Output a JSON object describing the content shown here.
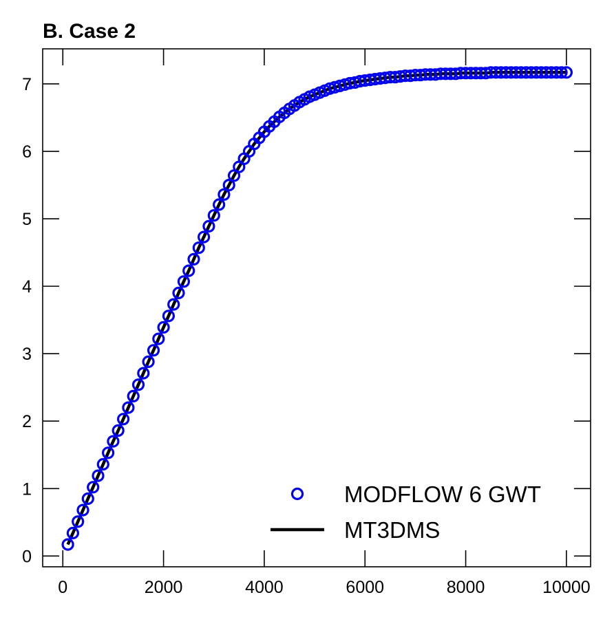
{
  "chart_data": {
    "type": "scatter",
    "title": "B. Case 2",
    "xlabel": "",
    "ylabel": "",
    "xlim": [
      -400,
      10480
    ],
    "ylim": [
      -0.16,
      7.52
    ],
    "xticks": [
      0,
      2000,
      4000,
      6000,
      8000,
      10000
    ],
    "yticks": [
      0,
      1,
      2,
      3,
      4,
      5,
      6,
      7
    ],
    "grid": false,
    "legend_position": "lower-right",
    "series": [
      {
        "name": "MODFLOW 6 GWT",
        "style": "markers",
        "marker": "open-circle",
        "color": "#0000ee",
        "x": [
          100,
          200,
          300,
          400,
          500,
          600,
          700,
          800,
          900,
          1000,
          1100,
          1200,
          1300,
          1400,
          1500,
          1600,
          1700,
          1800,
          1900,
          2000,
          2100,
          2200,
          2300,
          2400,
          2500,
          2600,
          2700,
          2800,
          2900,
          3000,
          3100,
          3200,
          3300,
          3400,
          3500,
          3600,
          3700,
          3800,
          3900,
          4000,
          4100,
          4200,
          4300,
          4400,
          4500,
          4600,
          4700,
          4800,
          4900,
          5000,
          5100,
          5200,
          5300,
          5400,
          5500,
          5600,
          5700,
          5800,
          5900,
          6000,
          6100,
          6200,
          6300,
          6400,
          6500,
          6600,
          6700,
          6800,
          6900,
          7000,
          7100,
          7200,
          7300,
          7400,
          7500,
          7600,
          7700,
          7800,
          7900,
          8000,
          8100,
          8200,
          8300,
          8400,
          8500,
          8600,
          8700,
          8800,
          8900,
          9000,
          9100,
          9200,
          9300,
          9400,
          9500,
          9600,
          9700,
          9800,
          9900,
          10000
        ],
        "y": [
          0.17,
          0.34,
          0.51,
          0.68,
          0.85,
          1.02,
          1.19,
          1.36,
          1.53,
          1.7,
          1.86,
          2.03,
          2.2,
          2.37,
          2.54,
          2.71,
          2.88,
          3.05,
          3.22,
          3.39,
          3.56,
          3.73,
          3.9,
          4.07,
          4.23,
          4.4,
          4.57,
          4.73,
          4.89,
          5.05,
          5.21,
          5.36,
          5.5,
          5.64,
          5.77,
          5.89,
          6.0,
          6.11,
          6.2,
          6.29,
          6.37,
          6.44,
          6.51,
          6.57,
          6.63,
          6.68,
          6.73,
          6.77,
          6.81,
          6.84,
          6.87,
          6.9,
          6.93,
          6.95,
          6.97,
          6.99,
          7.01,
          7.02,
          7.04,
          7.05,
          7.06,
          7.07,
          7.08,
          7.09,
          7.1,
          7.1,
          7.11,
          7.12,
          7.12,
          7.13,
          7.13,
          7.14,
          7.14,
          7.14,
          7.15,
          7.15,
          7.15,
          7.15,
          7.16,
          7.16,
          7.16,
          7.16,
          7.16,
          7.16,
          7.17,
          7.17,
          7.17,
          7.17,
          7.17,
          7.17,
          7.17,
          7.17,
          7.17,
          7.17,
          7.17,
          7.17,
          7.17,
          7.17,
          7.17,
          7.17
        ]
      },
      {
        "name": "MT3DMS",
        "style": "line",
        "color": "#000000",
        "x": [
          100,
          200,
          300,
          400,
          500,
          600,
          700,
          800,
          900,
          1000,
          1100,
          1200,
          1300,
          1400,
          1500,
          1600,
          1700,
          1800,
          1900,
          2000,
          2100,
          2200,
          2300,
          2400,
          2500,
          2600,
          2700,
          2800,
          2900,
          3000,
          3100,
          3200,
          3300,
          3400,
          3500,
          3600,
          3700,
          3800,
          3900,
          4000,
          4100,
          4200,
          4300,
          4400,
          4500,
          4600,
          4700,
          4800,
          4900,
          5000,
          5100,
          5200,
          5300,
          5400,
          5500,
          5600,
          5700,
          5800,
          5900,
          6000,
          6100,
          6200,
          6300,
          6400,
          6500,
          6600,
          6700,
          6800,
          6900,
          7000,
          7100,
          7200,
          7300,
          7400,
          7500,
          7600,
          7700,
          7800,
          7900,
          8000,
          8100,
          8200,
          8300,
          8400,
          8500,
          8600,
          8700,
          8800,
          8900,
          9000,
          9100,
          9200,
          9300,
          9400,
          9500,
          9600,
          9700,
          9800,
          9900,
          10000
        ],
        "y": [
          0.17,
          0.34,
          0.51,
          0.68,
          0.85,
          1.02,
          1.19,
          1.36,
          1.53,
          1.7,
          1.86,
          2.03,
          2.2,
          2.37,
          2.54,
          2.71,
          2.88,
          3.05,
          3.22,
          3.39,
          3.56,
          3.73,
          3.9,
          4.07,
          4.23,
          4.4,
          4.57,
          4.73,
          4.89,
          5.05,
          5.21,
          5.36,
          5.5,
          5.64,
          5.77,
          5.89,
          6.0,
          6.11,
          6.2,
          6.29,
          6.37,
          6.44,
          6.51,
          6.57,
          6.63,
          6.68,
          6.73,
          6.77,
          6.81,
          6.84,
          6.87,
          6.9,
          6.93,
          6.95,
          6.97,
          6.99,
          7.01,
          7.02,
          7.04,
          7.05,
          7.06,
          7.07,
          7.08,
          7.09,
          7.1,
          7.1,
          7.11,
          7.12,
          7.12,
          7.13,
          7.13,
          7.14,
          7.14,
          7.14,
          7.15,
          7.15,
          7.15,
          7.15,
          7.16,
          7.16,
          7.16,
          7.16,
          7.16,
          7.16,
          7.17,
          7.17,
          7.17,
          7.17,
          7.17,
          7.17,
          7.17,
          7.17,
          7.17,
          7.17,
          7.17,
          7.17,
          7.17,
          7.17,
          7.17,
          7.17
        ]
      }
    ]
  }
}
